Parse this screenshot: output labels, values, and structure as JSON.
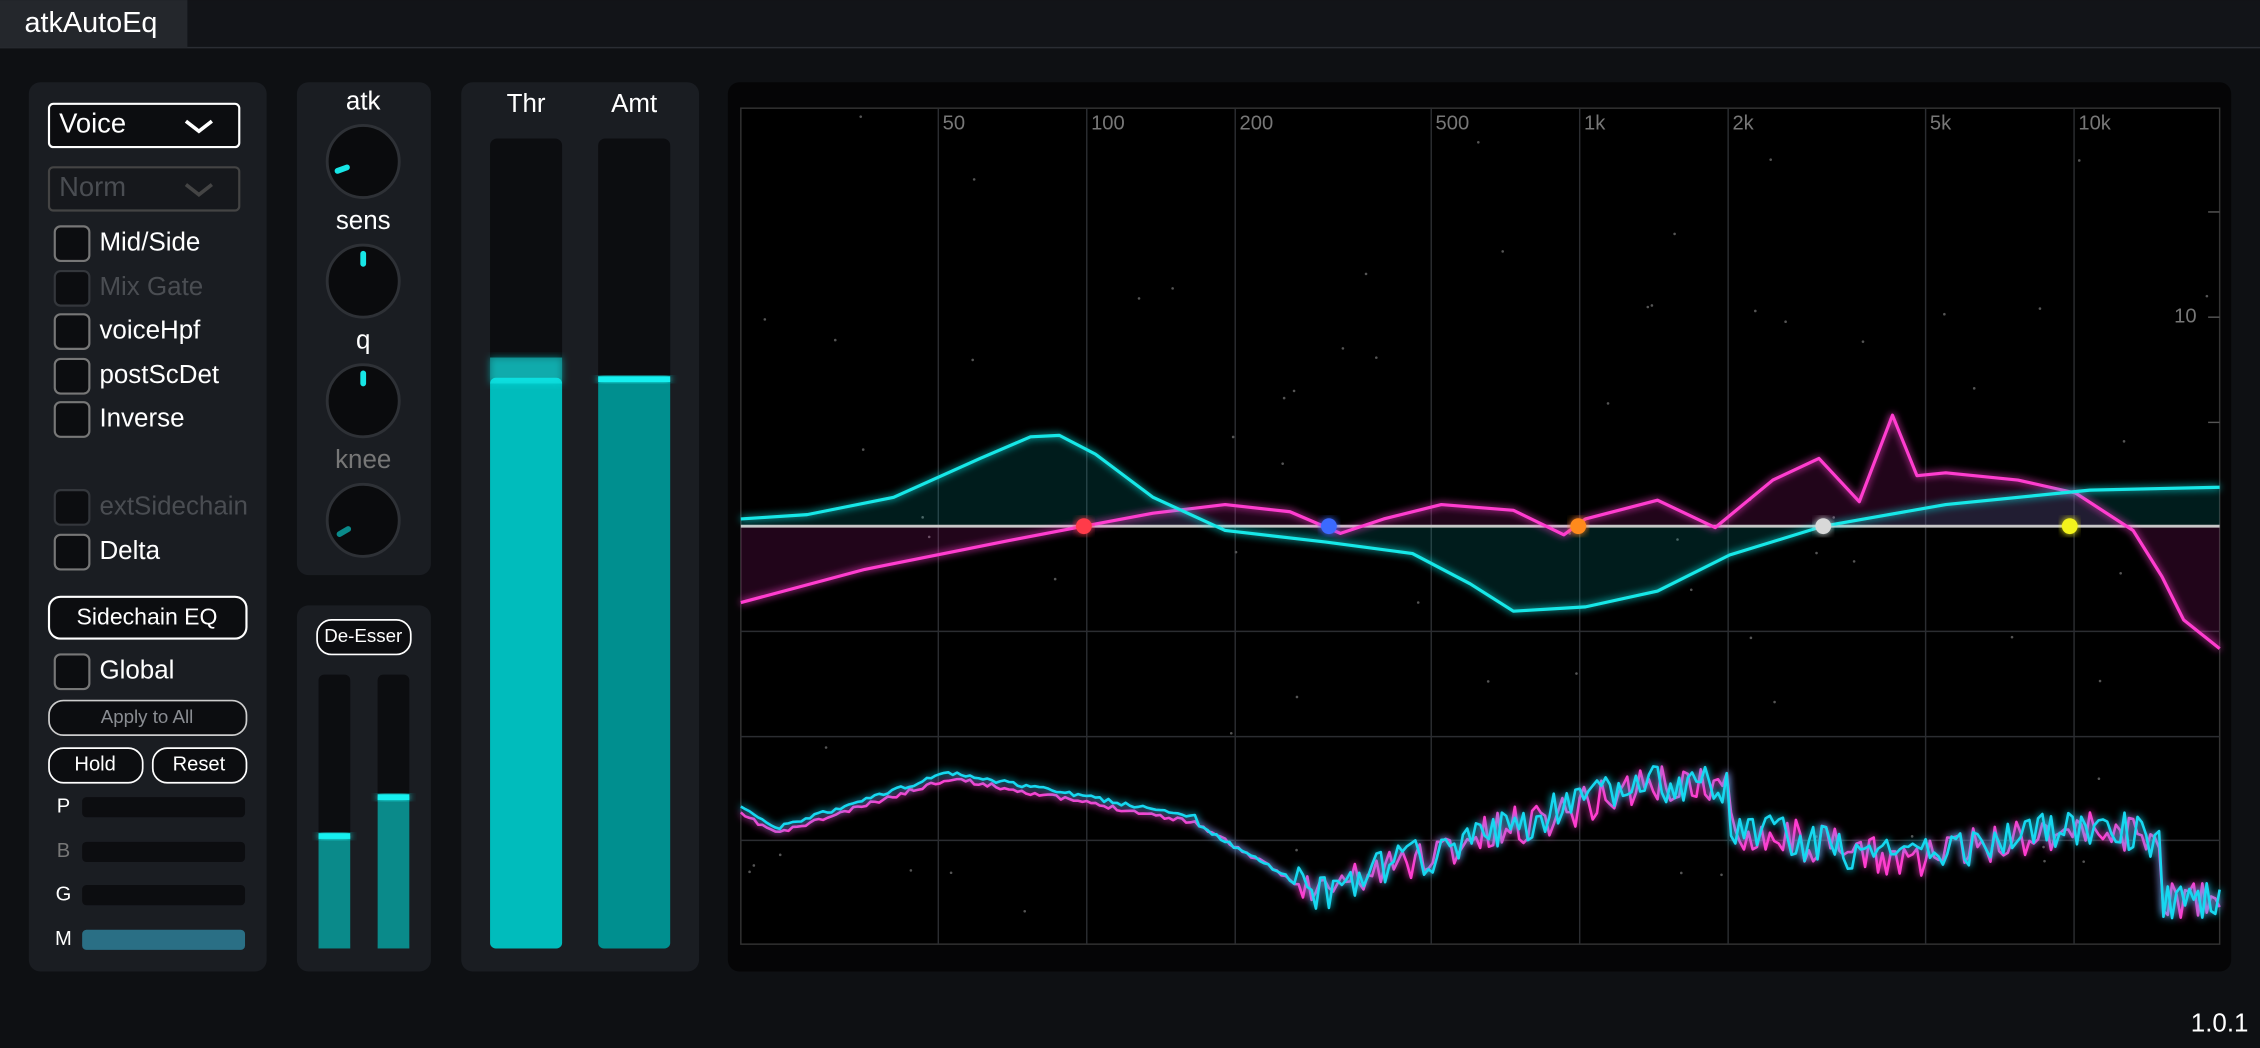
{
  "app": {
    "title": "atkAutoEq",
    "version": "1.0.1"
  },
  "left_panel": {
    "mode_dropdown": "Voice",
    "norm_dropdown": "Norm",
    "checkboxes": [
      "Mid/Side",
      "Mix Gate",
      "voiceHpf",
      "postScDet",
      "Inverse",
      "extSidechain",
      "Delta"
    ],
    "sidechain_eq_button": "Sidechain EQ",
    "global_checkbox": "Global",
    "apply_button": "Apply to All",
    "hold_button": "Hold",
    "reset_button": "Reset",
    "meters": [
      "P",
      "B",
      "G",
      "M"
    ]
  },
  "knobs": [
    "atk",
    "sens",
    "q",
    "knee"
  ],
  "de_esser_button": "De-Esser",
  "sliders": [
    "Thr",
    "Amt"
  ],
  "eq_display": {
    "freq_labels": [
      "50",
      "100",
      "200",
      "500",
      "1k",
      "2k",
      "5k",
      "10k"
    ],
    "level_labels": [
      "10"
    ]
  }
}
